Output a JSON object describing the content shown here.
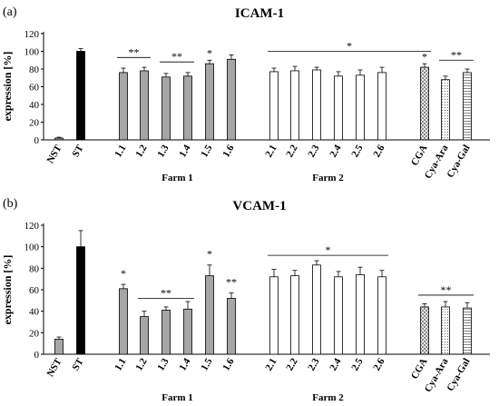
{
  "chart_data": [
    {
      "type": "bar",
      "panel_label": "(a)",
      "title": "ICAM-1",
      "ylabel": "expression [%]",
      "ylim": [
        0,
        120
      ],
      "yticks": [
        0,
        20,
        40,
        60,
        80,
        100,
        120
      ],
      "categories": [
        "NST",
        "ST",
        "1.1",
        "1.2",
        "1.3",
        "1.4",
        "1.5",
        "1.6",
        "2.1",
        "2.2",
        "2.3",
        "2.4",
        "2.5",
        "2.6",
        "CGA",
        "Cya-Ara",
        "Cya-Gal"
      ],
      "values": [
        2,
        100,
        76,
        78,
        71,
        72,
        86,
        91,
        77,
        78,
        79,
        72,
        73,
        76,
        82,
        68,
        76
      ],
      "errors": [
        1,
        3,
        5,
        4,
        4,
        4,
        4,
        5,
        4,
        5,
        3,
        5,
        6,
        6,
        4,
        4,
        4
      ],
      "fills": [
        "gray",
        "black",
        "gray",
        "gray",
        "gray",
        "gray",
        "gray",
        "gray",
        "white",
        "white",
        "white",
        "white",
        "white",
        "white",
        "cross",
        "dots",
        "hlines"
      ],
      "groups": [
        {
          "label": "Farm 1",
          "from": 2,
          "to": 7
        },
        {
          "label": "Farm 2",
          "from": 8,
          "to": 13
        }
      ],
      "annotations": [
        {
          "text": "**",
          "from": 2,
          "to": 3,
          "y": 93
        },
        {
          "text": "**",
          "from": 4,
          "to": 5,
          "y": 88
        },
        {
          "text": "*",
          "from": 6,
          "to": 6,
          "y": 94
        },
        {
          "text": "*",
          "from": 8,
          "to": 14,
          "y": 100
        },
        {
          "text": "*",
          "from": 14,
          "to": 14,
          "y": 90
        },
        {
          "text": "**",
          "from": 15,
          "to": 16,
          "y": 90
        }
      ]
    },
    {
      "type": "bar",
      "panel_label": "(b)",
      "title": "VCAM-1",
      "ylabel": "expression [%]",
      "ylim": [
        0,
        120
      ],
      "yticks": [
        0,
        20,
        40,
        60,
        80,
        100,
        120
      ],
      "categories": [
        "NST",
        "ST",
        "1.1",
        "1.2",
        "1.3",
        "1.4",
        "1.5",
        "1.6",
        "2.1",
        "2.2",
        "2.3",
        "2.4",
        "2.5",
        "2.6",
        "CGA",
        "Cya-Ara",
        "Cya-Gal"
      ],
      "values": [
        14,
        100,
        61,
        35,
        41,
        42,
        73,
        52,
        72,
        73,
        83,
        72,
        74,
        72,
        44,
        44,
        43
      ],
      "errors": [
        2,
        15,
        4,
        5,
        3,
        7,
        10,
        5,
        7,
        5,
        4,
        5,
        7,
        6,
        3,
        5,
        5
      ],
      "fills": [
        "gray",
        "black",
        "gray",
        "gray",
        "gray",
        "gray",
        "gray",
        "gray",
        "white",
        "white",
        "white",
        "white",
        "white",
        "white",
        "cross",
        "dots",
        "hlines"
      ],
      "groups": [
        {
          "label": "Farm 1",
          "from": 2,
          "to": 7
        },
        {
          "label": "Farm 2",
          "from": 8,
          "to": 13
        }
      ],
      "annotations": [
        {
          "text": "*",
          "from": 2,
          "to": 2,
          "y": 72
        },
        {
          "text": "**",
          "from": 3,
          "to": 5,
          "y": 52
        },
        {
          "text": "*",
          "from": 6,
          "to": 6,
          "y": 90
        },
        {
          "text": "**",
          "from": 7,
          "to": 7,
          "y": 64
        },
        {
          "text": "*",
          "from": 8,
          "to": 13,
          "y": 92
        },
        {
          "text": "**",
          "from": 14,
          "to": 16,
          "y": 55
        }
      ]
    }
  ]
}
